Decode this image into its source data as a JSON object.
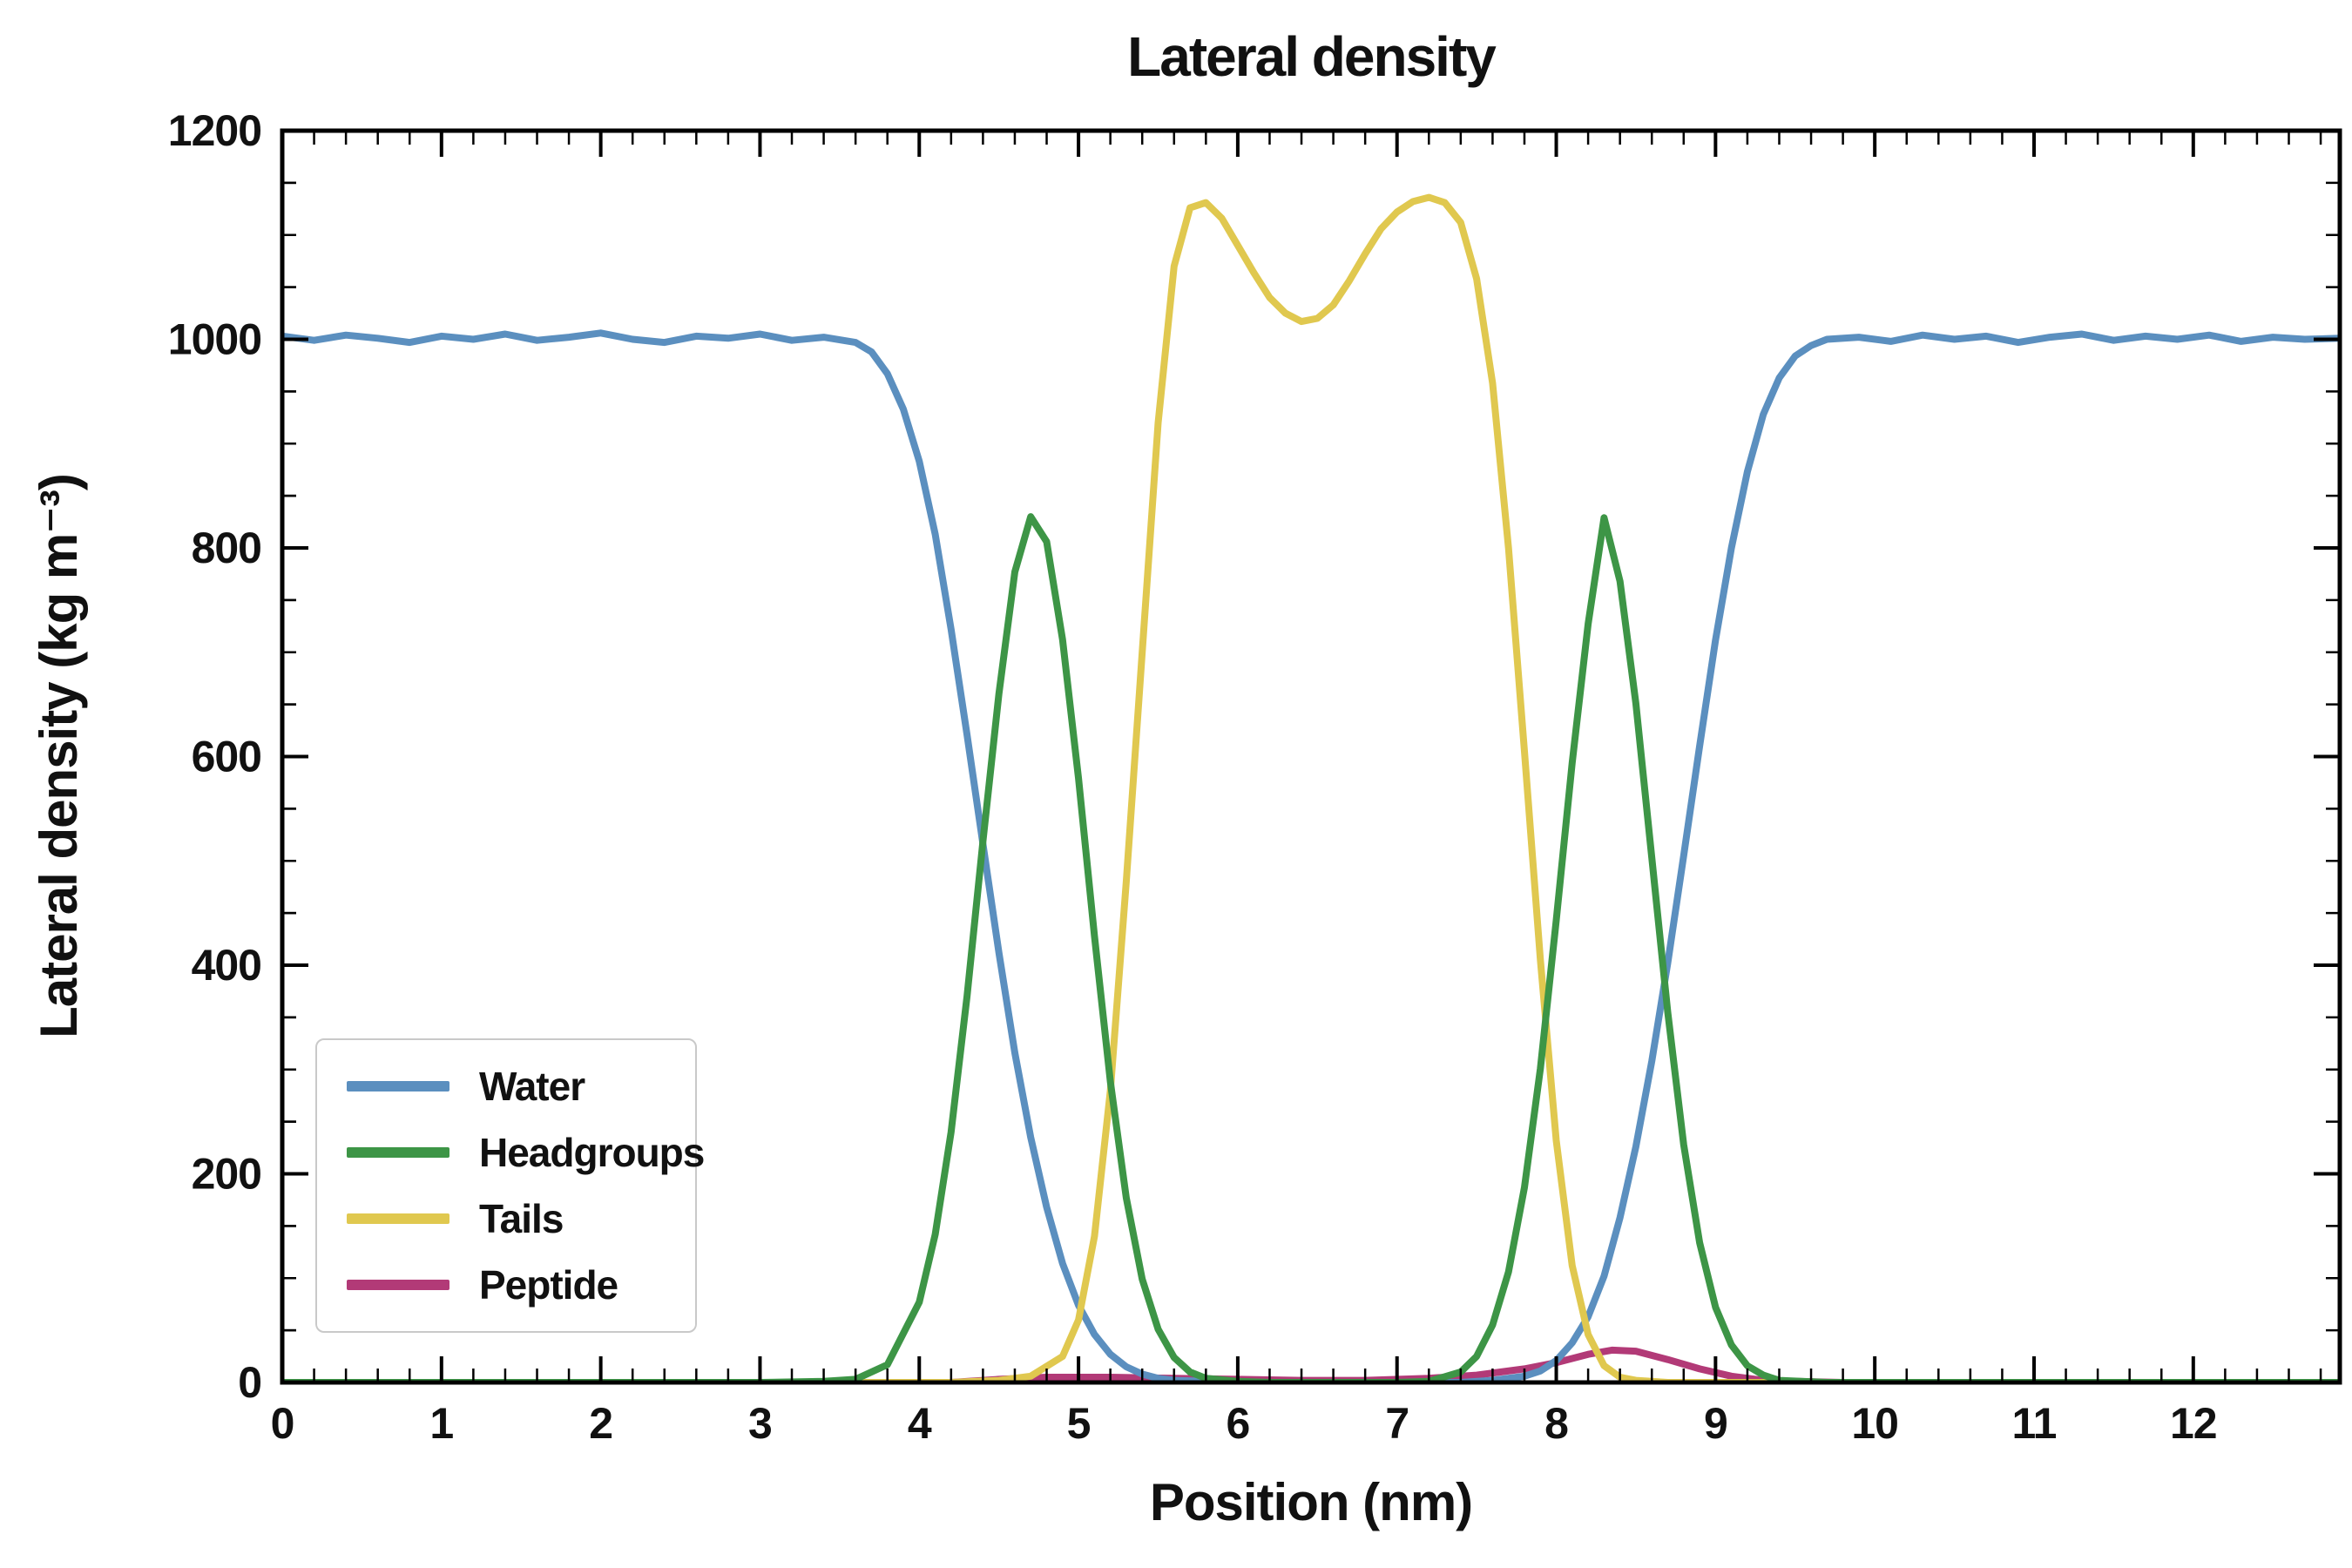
{
  "chart_data": {
    "type": "line",
    "title": "Lateral density",
    "xlabel": "Position (nm)",
    "ylabel": "Lateral density (kg m⁻³)",
    "xlim": [
      0,
      12.92
    ],
    "ylim": [
      0,
      1200
    ],
    "x_major_ticks": [
      0,
      1,
      2,
      3,
      4,
      5,
      6,
      7,
      8,
      9,
      10,
      11,
      12
    ],
    "y_major_ticks": [
      0,
      200,
      400,
      600,
      800,
      1000,
      1200
    ],
    "x_minor_step": 0.2,
    "y_minor_step": 50,
    "grid": false,
    "legend_position": "lower left",
    "axis_color": "#000000",
    "draw_order": [
      "Peptide",
      "Water",
      "Tails",
      "Headgroups"
    ],
    "series": [
      {
        "name": "Water",
        "color": "#5b8fbf",
        "points": [
          [
            0,
            1003
          ],
          [
            0.2,
            999
          ],
          [
            0.4,
            1004
          ],
          [
            0.6,
            1001
          ],
          [
            0.8,
            997
          ],
          [
            1,
            1003
          ],
          [
            1.2,
            1000
          ],
          [
            1.4,
            1005
          ],
          [
            1.6,
            999
          ],
          [
            1.8,
            1002
          ],
          [
            2,
            1006
          ],
          [
            2.2,
            1000
          ],
          [
            2.4,
            997
          ],
          [
            2.6,
            1003
          ],
          [
            2.8,
            1001
          ],
          [
            3,
            1005
          ],
          [
            3.2,
            999
          ],
          [
            3.4,
            1002
          ],
          [
            3.6,
            997
          ],
          [
            3.7,
            988
          ],
          [
            3.8,
            967
          ],
          [
            3.9,
            933
          ],
          [
            4,
            883
          ],
          [
            4.1,
            813
          ],
          [
            4.2,
            722
          ],
          [
            4.3,
            621
          ],
          [
            4.4,
            516
          ],
          [
            4.5,
            412
          ],
          [
            4.6,
            316
          ],
          [
            4.7,
            235
          ],
          [
            4.8,
            168
          ],
          [
            4.9,
            114
          ],
          [
            5,
            74
          ],
          [
            5.1,
            46
          ],
          [
            5.2,
            27
          ],
          [
            5.3,
            15
          ],
          [
            5.4,
            8
          ],
          [
            5.5,
            4
          ],
          [
            5.6,
            2
          ],
          [
            5.8,
            1
          ],
          [
            6,
            0
          ],
          [
            6.5,
            0
          ],
          [
            7,
            0
          ],
          [
            7.4,
            0
          ],
          [
            7.6,
            2
          ],
          [
            7.8,
            6
          ],
          [
            7.9,
            11
          ],
          [
            8,
            21
          ],
          [
            8.1,
            38
          ],
          [
            8.2,
            63
          ],
          [
            8.3,
            102
          ],
          [
            8.4,
            158
          ],
          [
            8.5,
            226
          ],
          [
            8.6,
            308
          ],
          [
            8.7,
            402
          ],
          [
            8.8,
            505
          ],
          [
            8.9,
            610
          ],
          [
            9,
            712
          ],
          [
            9.1,
            800
          ],
          [
            9.2,
            873
          ],
          [
            9.3,
            928
          ],
          [
            9.4,
            963
          ],
          [
            9.5,
            984
          ],
          [
            9.6,
            994
          ],
          [
            9.7,
            1000
          ],
          [
            9.9,
            1002
          ],
          [
            10.1,
            998
          ],
          [
            10.3,
            1004
          ],
          [
            10.5,
            1000
          ],
          [
            10.7,
            1003
          ],
          [
            10.9,
            997
          ],
          [
            11.1,
            1002
          ],
          [
            11.3,
            1005
          ],
          [
            11.5,
            999
          ],
          [
            11.7,
            1003
          ],
          [
            11.9,
            1000
          ],
          [
            12.1,
            1004
          ],
          [
            12.3,
            998
          ],
          [
            12.5,
            1002
          ],
          [
            12.7,
            1000
          ],
          [
            12.92,
            1001
          ]
        ]
      },
      {
        "name": "Headgroups",
        "color": "#3d9546",
        "points": [
          [
            0,
            0
          ],
          [
            3,
            0
          ],
          [
            3.4,
            1
          ],
          [
            3.6,
            3
          ],
          [
            3.8,
            17
          ],
          [
            4,
            77
          ],
          [
            4.1,
            142
          ],
          [
            4.2,
            240
          ],
          [
            4.3,
            370
          ],
          [
            4.4,
            519
          ],
          [
            4.5,
            660
          ],
          [
            4.6,
            777
          ],
          [
            4.7,
            830
          ],
          [
            4.8,
            806
          ],
          [
            4.9,
            712
          ],
          [
            5,
            579
          ],
          [
            5.1,
            428
          ],
          [
            5.2,
            288
          ],
          [
            5.3,
            177
          ],
          [
            5.4,
            99
          ],
          [
            5.5,
            51
          ],
          [
            5.6,
            24
          ],
          [
            5.7,
            10
          ],
          [
            5.8,
            4
          ],
          [
            6,
            1
          ],
          [
            6.2,
            0
          ],
          [
            7,
            0
          ],
          [
            7.2,
            1
          ],
          [
            7.4,
            10
          ],
          [
            7.5,
            25
          ],
          [
            7.6,
            55
          ],
          [
            7.7,
            106
          ],
          [
            7.8,
            187
          ],
          [
            7.9,
            301
          ],
          [
            8,
            443
          ],
          [
            8.1,
            594
          ],
          [
            8.2,
            727
          ],
          [
            8.3,
            829
          ],
          [
            8.4,
            768
          ],
          [
            8.5,
            651
          ],
          [
            8.6,
            503
          ],
          [
            8.7,
            355
          ],
          [
            8.8,
            228
          ],
          [
            8.9,
            134
          ],
          [
            9,
            72
          ],
          [
            9.1,
            36
          ],
          [
            9.2,
            16
          ],
          [
            9.3,
            7
          ],
          [
            9.4,
            2
          ],
          [
            9.7,
            0
          ],
          [
            12.92,
            0
          ]
        ]
      },
      {
        "name": "Tails",
        "color": "#e0c84f",
        "points": [
          [
            0,
            0
          ],
          [
            4.2,
            0
          ],
          [
            4.5,
            2
          ],
          [
            4.7,
            6
          ],
          [
            4.9,
            25
          ],
          [
            5,
            60
          ],
          [
            5.1,
            140
          ],
          [
            5.2,
            280
          ],
          [
            5.3,
            480
          ],
          [
            5.4,
            700
          ],
          [
            5.5,
            920
          ],
          [
            5.6,
            1070
          ],
          [
            5.7,
            1126
          ],
          [
            5.8,
            1131
          ],
          [
            5.9,
            1116
          ],
          [
            6,
            1090
          ],
          [
            6.1,
            1064
          ],
          [
            6.2,
            1040
          ],
          [
            6.3,
            1025
          ],
          [
            6.4,
            1017
          ],
          [
            6.5,
            1020
          ],
          [
            6.6,
            1033
          ],
          [
            6.7,
            1056
          ],
          [
            6.8,
            1082
          ],
          [
            6.9,
            1106
          ],
          [
            7,
            1122
          ],
          [
            7.1,
            1132
          ],
          [
            7.2,
            1136
          ],
          [
            7.3,
            1131
          ],
          [
            7.4,
            1112
          ],
          [
            7.5,
            1058
          ],
          [
            7.6,
            958
          ],
          [
            7.7,
            800
          ],
          [
            7.8,
            605
          ],
          [
            7.9,
            405
          ],
          [
            8,
            232
          ],
          [
            8.1,
            112
          ],
          [
            8.2,
            46
          ],
          [
            8.3,
            16
          ],
          [
            8.4,
            5
          ],
          [
            8.5,
            2
          ],
          [
            8.7,
            0
          ],
          [
            12.92,
            0
          ]
        ]
      },
      {
        "name": "Peptide",
        "color": "#b23a77",
        "points": [
          [
            0,
            0
          ],
          [
            4.2,
            0
          ],
          [
            4.5,
            3
          ],
          [
            4.8,
            5
          ],
          [
            5.2,
            5
          ],
          [
            5.6,
            4
          ],
          [
            6,
            3
          ],
          [
            6.4,
            2
          ],
          [
            6.8,
            2
          ],
          [
            7.2,
            4
          ],
          [
            7.5,
            7
          ],
          [
            7.8,
            13
          ],
          [
            8,
            19
          ],
          [
            8.2,
            27
          ],
          [
            8.35,
            31
          ],
          [
            8.5,
            30
          ],
          [
            8.7,
            22
          ],
          [
            8.9,
            13
          ],
          [
            9.1,
            6
          ],
          [
            9.3,
            2
          ],
          [
            9.5,
            1
          ],
          [
            9.8,
            0
          ],
          [
            12.92,
            0
          ]
        ]
      }
    ]
  }
}
